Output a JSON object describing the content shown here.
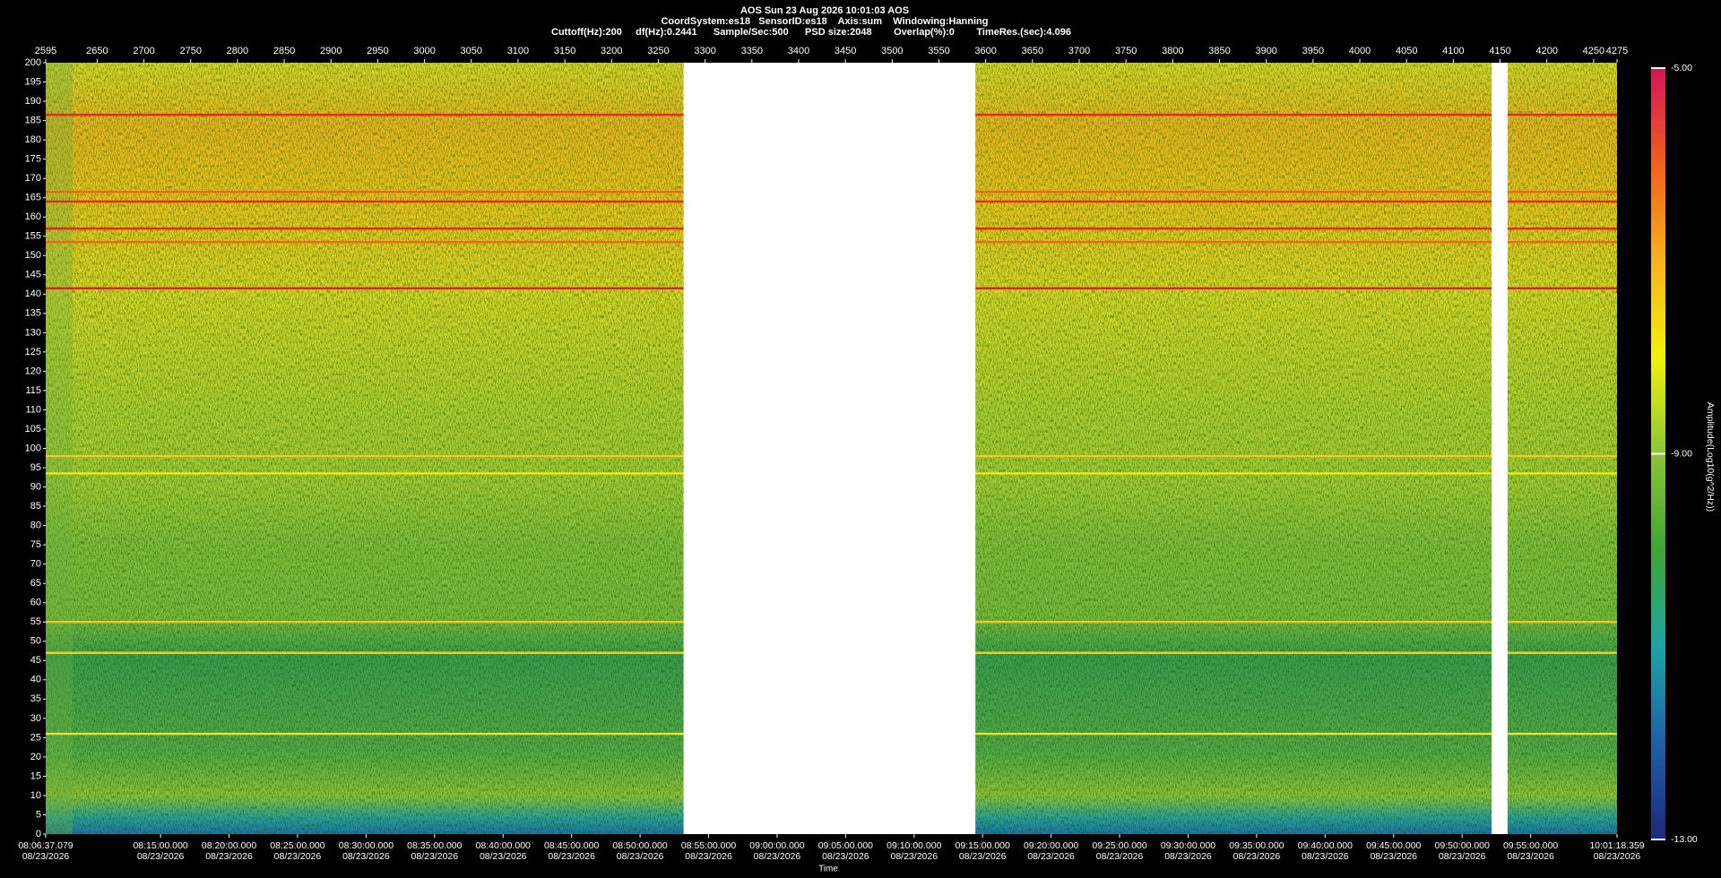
{
  "chart_data": {
    "type": "spectrogram",
    "title": "AOS  Sun 23 Aug 2026 10:01:03  AOS",
    "subtitle": "CoordSystem:es18   SensorID:es18    Axis:sum    Windowing:Hanning",
    "caption": "Cuttoff(Hz):200     df(Hz):0.2441      Sample/Sec:500      PSD size:2048        Overlap(%):0        TimeRes.(sec):4.096",
    "x_label": "Time",
    "z_label": "Amplitude(Log10(g^2/Hz))",
    "date": "08/23/2026",
    "x2lim": [
      2595,
      4275
    ],
    "x2ticks": [
      2595,
      2650,
      2700,
      2750,
      2800,
      2850,
      2900,
      2950,
      3000,
      3050,
      3100,
      3150,
      3200,
      3250,
      3300,
      3350,
      3400,
      3450,
      3500,
      3550,
      3600,
      3650,
      3700,
      3750,
      3800,
      3850,
      3900,
      3950,
      4000,
      4050,
      4100,
      4150,
      4200,
      4250,
      4275
    ],
    "xlim": [
      29197.079,
      36078.359
    ],
    "xticks": [
      {
        "value": 29197.079,
        "label": "08:06:37.079"
      },
      {
        "value": 29700,
        "label": "08:15:00.000"
      },
      {
        "value": 30000,
        "label": "08:20:00.000"
      },
      {
        "value": 30300,
        "label": "08:25:00.000"
      },
      {
        "value": 30600,
        "label": "08:30:00.000"
      },
      {
        "value": 30900,
        "label": "08:35:00.000"
      },
      {
        "value": 31200,
        "label": "08:40:00.000"
      },
      {
        "value": 31500,
        "label": "08:45:00.000"
      },
      {
        "value": 31800,
        "label": "08:50:00.000"
      },
      {
        "value": 32100,
        "label": "08:55:00.000"
      },
      {
        "value": 32400,
        "label": "09:00:00.000"
      },
      {
        "value": 32700,
        "label": "09:05:00.000"
      },
      {
        "value": 33000,
        "label": "09:10:00.000"
      },
      {
        "value": 33300,
        "label": "09:15:00.000"
      },
      {
        "value": 33600,
        "label": "09:20:00.000"
      },
      {
        "value": 33900,
        "label": "09:25:00.000"
      },
      {
        "value": 34200,
        "label": "09:30:00.000"
      },
      {
        "value": 34500,
        "label": "09:35:00.000"
      },
      {
        "value": 34800,
        "label": "09:40:00.000"
      },
      {
        "value": 35100,
        "label": "09:45:00.000"
      },
      {
        "value": 35400,
        "label": "09:50:00.000"
      },
      {
        "value": 35700,
        "label": "09:55:00.000"
      },
      {
        "value": 36078.359,
        "label": "10:01:18.359"
      }
    ],
    "ylim": [
      0,
      200
    ],
    "yticks": [
      0,
      5,
      10,
      15,
      20,
      25,
      30,
      35,
      40,
      45,
      50,
      55,
      60,
      65,
      70,
      75,
      80,
      85,
      90,
      95,
      100,
      105,
      110,
      115,
      120,
      125,
      130,
      135,
      140,
      145,
      150,
      155,
      160,
      165,
      170,
      175,
      180,
      185,
      190,
      195,
      200
    ],
    "zlim": [
      -13,
      -5
    ],
    "zticks": [
      {
        "value": -5,
        "label": "-5.00"
      },
      {
        "value": -9,
        "label": "-9.00"
      },
      {
        "value": -13,
        "label": "-13.00"
      }
    ],
    "colormap": [
      "#d4145a",
      "#f0601e",
      "#f7b21e",
      "#f2f20a",
      "#8cc43a",
      "#3fa535",
      "#1fa3a3",
      "#1f5fa8",
      "#1e2a78"
    ],
    "gaps": [
      [
        3277,
        3589
      ],
      [
        4141,
        4158
      ]
    ],
    "tonal_lines": [
      {
        "freq": 186.5,
        "color": "#e8281e"
      },
      {
        "freq": 166.5,
        "color": "#f0641e"
      },
      {
        "freq": 164,
        "color": "#e8281e"
      },
      {
        "freq": 157,
        "color": "#e8281e"
      },
      {
        "freq": 153.5,
        "color": "#f0641e"
      },
      {
        "freq": 141.5,
        "color": "#e0201e"
      },
      {
        "freq": 98,
        "color": "#f5c81e"
      },
      {
        "freq": 93.5,
        "color": "#f5e61e"
      },
      {
        "freq": 55,
        "color": "#f5c81e"
      },
      {
        "freq": 47,
        "color": "#f5d21e"
      },
      {
        "freq": 26,
        "color": "#e6e632"
      }
    ]
  }
}
